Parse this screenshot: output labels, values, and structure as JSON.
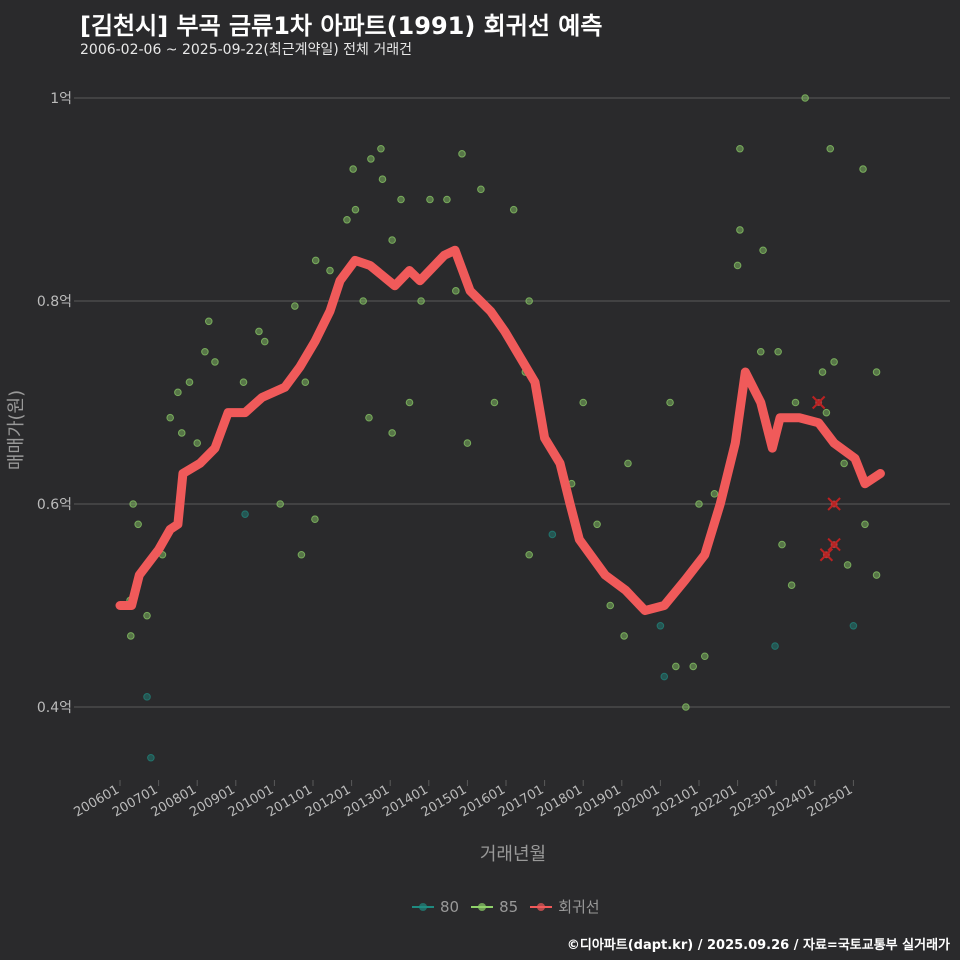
{
  "header": {
    "title": "[김천시] 부곡 금류1차 아파트(1991) 회귀선 예측",
    "subtitle": "2006-02-06 ~ 2025-09-22(최근계약일) 전체 거래건"
  },
  "footer": "©디아파트(dapt.kr) / 2025.09.26 / 자료=국토교통부 실거래가",
  "colors": {
    "g80": "#1f8a80",
    "g85": "#8fd16a",
    "line": "#f05a5a",
    "grid": "#5a5a5a",
    "text": "#bbbbbb"
  },
  "chart_data": {
    "type": "scatter",
    "title": "[김천시] 부곡 금류1차 아파트(1991) 회귀선 예측",
    "xlabel": "거래년월",
    "ylabel": "매매가(원)",
    "xlim": [
      2005.0,
      2026.9
    ],
    "ylim": [
      0.3,
      1.05
    ],
    "y_ticks": [
      {
        "v": 1.0,
        "label": "1억"
      },
      {
        "v": 0.8,
        "label": "0.8억"
      },
      {
        "v": 0.6,
        "label": "0.6억"
      },
      {
        "v": 0.4,
        "label": "0.4억"
      }
    ],
    "x_ticks": [
      {
        "v": 2006,
        "label": "200601"
      },
      {
        "v": 2007,
        "label": "200701"
      },
      {
        "v": 2008,
        "label": "200801"
      },
      {
        "v": 2009,
        "label": "200901"
      },
      {
        "v": 2010,
        "label": "201001"
      },
      {
        "v": 2011,
        "label": "201101"
      },
      {
        "v": 2012,
        "label": "201201"
      },
      {
        "v": 2013,
        "label": "201301"
      },
      {
        "v": 2014,
        "label": "201401"
      },
      {
        "v": 2015,
        "label": "201501"
      },
      {
        "v": 2016,
        "label": "201601"
      },
      {
        "v": 2017,
        "label": "201701"
      },
      {
        "v": 2018,
        "label": "201801"
      },
      {
        "v": 2019,
        "label": "201901"
      },
      {
        "v": 2020,
        "label": "202001"
      },
      {
        "v": 2021,
        "label": "202101"
      },
      {
        "v": 2022,
        "label": "202201"
      },
      {
        "v": 2023,
        "label": "202301"
      },
      {
        "v": 2024,
        "label": "202401"
      },
      {
        "v": 2025,
        "label": "202501"
      }
    ],
    "legend": [
      {
        "name": "80",
        "key": "g80"
      },
      {
        "name": "85",
        "key": "g85"
      },
      {
        "name": "회귀선",
        "key": "line"
      }
    ],
    "legend_position": "bottom",
    "points": [
      [
        2006.26,
        0.505,
        "85"
      ],
      [
        2006.28,
        0.47,
        "85"
      ],
      [
        2006.7,
        0.41,
        "80"
      ],
      [
        2006.8,
        0.35,
        "80"
      ],
      [
        2006.34,
        0.6,
        "85"
      ],
      [
        2006.47,
        0.58,
        "85"
      ],
      [
        2006.7,
        0.49,
        "85"
      ],
      [
        2007.1,
        0.55,
        "85"
      ],
      [
        2007.3,
        0.685,
        "85"
      ],
      [
        2007.5,
        0.71,
        "85"
      ],
      [
        2007.8,
        0.72,
        "85"
      ],
      [
        2008.2,
        0.75,
        "85"
      ],
      [
        2008.3,
        0.78,
        "85"
      ],
      [
        2008.46,
        0.74,
        "85"
      ],
      [
        2009.2,
        0.72,
        "85"
      ],
      [
        2009.6,
        0.77,
        "85"
      ],
      [
        2009.75,
        0.76,
        "85"
      ],
      [
        2009.24,
        0.59,
        "80"
      ],
      [
        2010.15,
        0.6,
        "85"
      ],
      [
        2010.53,
        0.795,
        "85"
      ],
      [
        2011.07,
        0.84,
        "85"
      ],
      [
        2010.7,
        0.55,
        "85"
      ],
      [
        2011.05,
        0.585,
        "85"
      ],
      [
        2011.44,
        0.83,
        "85"
      ],
      [
        2011.88,
        0.88,
        "85"
      ],
      [
        2012.04,
        0.93,
        "85"
      ],
      [
        2012.1,
        0.89,
        "85"
      ],
      [
        2012.5,
        0.94,
        "85"
      ],
      [
        2012.76,
        0.95,
        "85"
      ],
      [
        2012.8,
        0.92,
        "85"
      ],
      [
        2013.28,
        0.9,
        "85"
      ],
      [
        2013.05,
        0.86,
        "85"
      ],
      [
        2012.45,
        0.685,
        "85"
      ],
      [
        2013.05,
        0.67,
        "85"
      ],
      [
        2013.5,
        0.7,
        "85"
      ],
      [
        2014.03,
        0.9,
        "85"
      ],
      [
        2014.47,
        0.9,
        "85"
      ],
      [
        2014.86,
        0.945,
        "85"
      ],
      [
        2015.35,
        0.91,
        "85"
      ],
      [
        2015.0,
        0.66,
        "85"
      ],
      [
        2016.2,
        0.89,
        "85"
      ],
      [
        2016.6,
        0.55,
        "85"
      ],
      [
        2017.2,
        0.57,
        "80"
      ],
      [
        2018.0,
        0.7,
        "85"
      ],
      [
        2018.36,
        0.58,
        "85"
      ],
      [
        2019.16,
        0.64,
        "85"
      ],
      [
        2018.7,
        0.5,
        "85"
      ],
      [
        2019.06,
        0.47,
        "85"
      ],
      [
        2020.0,
        0.48,
        "80"
      ],
      [
        2020.1,
        0.43,
        "80"
      ],
      [
        2020.4,
        0.44,
        "85"
      ],
      [
        2020.66,
        0.4,
        "85"
      ],
      [
        2020.85,
        0.44,
        "85"
      ],
      [
        2021.15,
        0.45,
        "85"
      ],
      [
        2020.25,
        0.7,
        "85"
      ],
      [
        2022.06,
        0.95,
        "85"
      ],
      [
        2022.06,
        0.87,
        "85"
      ],
      [
        2022.0,
        0.835,
        "85"
      ],
      [
        2022.66,
        0.85,
        "85"
      ],
      [
        2023.05,
        0.75,
        "85"
      ],
      [
        2022.6,
        0.75,
        "85"
      ],
      [
        2022.97,
        0.46,
        "80"
      ],
      [
        2023.15,
        0.56,
        "85"
      ],
      [
        2023.4,
        0.52,
        "85"
      ],
      [
        2023.75,
        1.0,
        "85"
      ],
      [
        2024.4,
        0.95,
        "85"
      ],
      [
        2025.25,
        0.93,
        "85"
      ],
      [
        2025.6,
        0.73,
        "85"
      ],
      [
        2025.6,
        0.53,
        "85"
      ],
      [
        2025.0,
        0.48,
        "80"
      ],
      [
        2025.3,
        0.58,
        "85"
      ],
      [
        2024.85,
        0.54,
        "85"
      ],
      [
        2024.2,
        0.73,
        "85"
      ],
      [
        2024.5,
        0.74,
        "85"
      ],
      [
        2024.76,
        0.64,
        "85"
      ],
      [
        2016.6,
        0.8,
        "85"
      ],
      [
        2007.6,
        0.67,
        "85"
      ],
      [
        2008.0,
        0.66,
        "85"
      ],
      [
        2010.8,
        0.72,
        "85"
      ],
      [
        2012.3,
        0.8,
        "85"
      ],
      [
        2013.8,
        0.8,
        "85"
      ],
      [
        2014.7,
        0.81,
        "85"
      ],
      [
        2015.7,
        0.7,
        "85"
      ],
      [
        2016.5,
        0.73,
        "85"
      ],
      [
        2017.7,
        0.62,
        "85"
      ],
      [
        2019.5,
        0.5,
        "85"
      ],
      [
        2021.0,
        0.6,
        "85"
      ],
      [
        2021.4,
        0.61,
        "85"
      ],
      [
        2022.3,
        0.72,
        "85"
      ],
      [
        2023.5,
        0.7,
        "85"
      ],
      [
        2024.3,
        0.69,
        "85"
      ]
    ],
    "predicted_points": [
      [
        2024.1,
        0.7
      ],
      [
        2024.5,
        0.6
      ],
      [
        2024.3,
        0.55
      ],
      [
        2024.5,
        0.56
      ]
    ],
    "regression": [
      [
        2006.0,
        0.5
      ],
      [
        2006.3,
        0.5
      ],
      [
        2006.5,
        0.53
      ],
      [
        2006.7,
        0.54
      ],
      [
        2007.0,
        0.555
      ],
      [
        2007.3,
        0.575
      ],
      [
        2007.5,
        0.58
      ],
      [
        2007.63,
        0.63
      ],
      [
        2008.07,
        0.64
      ],
      [
        2008.46,
        0.655
      ],
      [
        2008.8,
        0.69
      ],
      [
        2009.24,
        0.69
      ],
      [
        2009.68,
        0.705
      ],
      [
        2010.27,
        0.715
      ],
      [
        2010.66,
        0.735
      ],
      [
        2011.05,
        0.76
      ],
      [
        2011.44,
        0.79
      ],
      [
        2011.7,
        0.82
      ],
      [
        2012.09,
        0.84
      ],
      [
        2012.48,
        0.835
      ],
      [
        2013.12,
        0.815
      ],
      [
        2013.5,
        0.83
      ],
      [
        2013.77,
        0.82
      ],
      [
        2014.4,
        0.845
      ],
      [
        2014.68,
        0.85
      ],
      [
        2015.07,
        0.81
      ],
      [
        2015.6,
        0.79
      ],
      [
        2015.97,
        0.77
      ],
      [
        2016.36,
        0.745
      ],
      [
        2016.75,
        0.72
      ],
      [
        2017.0,
        0.665
      ],
      [
        2017.4,
        0.64
      ],
      [
        2017.66,
        0.6
      ],
      [
        2017.9,
        0.565
      ],
      [
        2018.57,
        0.53
      ],
      [
        2019.1,
        0.515
      ],
      [
        2019.6,
        0.495
      ],
      [
        2020.1,
        0.5
      ],
      [
        2020.64,
        0.525
      ],
      [
        2021.15,
        0.55
      ],
      [
        2021.55,
        0.6
      ],
      [
        2021.94,
        0.66
      ],
      [
        2022.2,
        0.73
      ],
      [
        2022.6,
        0.7
      ],
      [
        2022.9,
        0.655
      ],
      [
        2023.1,
        0.685
      ],
      [
        2023.6,
        0.685
      ],
      [
        2024.1,
        0.68
      ],
      [
        2024.5,
        0.66
      ],
      [
        2025.04,
        0.645
      ],
      [
        2025.3,
        0.62
      ],
      [
        2025.7,
        0.63
      ]
    ]
  }
}
